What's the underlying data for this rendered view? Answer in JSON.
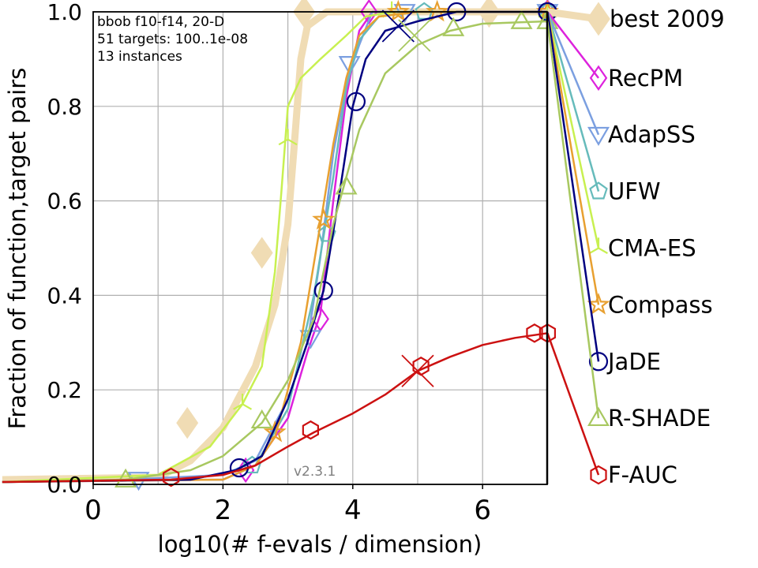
{
  "chart_data": {
    "type": "line",
    "title": "",
    "xlabel": "log10(# f-evals / dimension)",
    "ylabel": "Fraction of function,target pairs",
    "xlim": [
      -1.4,
      7.0
    ],
    "ylim": [
      0,
      1.0
    ],
    "xticks": [
      "0",
      "2",
      "4",
      "6"
    ],
    "xtick_values": [
      0,
      2,
      4,
      6
    ],
    "yticks": [
      "0.0",
      "0.2",
      "0.4",
      "0.6",
      "0.8",
      "1.0"
    ],
    "ytick_values": [
      0,
      0.2,
      0.4,
      0.6,
      0.8,
      1.0
    ],
    "grid": true,
    "legend_placement": "right",
    "annotations": [
      "bbob f10-f14, 20-D",
      "51 targets: 100..1e-08",
      "13 instances"
    ],
    "version": "v2.3.1",
    "series": [
      {
        "name": "best 2009",
        "color": "#f0dcb4",
        "marker": "diamond",
        "width": 9,
        "points": [
          [
            -1.4,
            0.01
          ],
          [
            1.0,
            0.015
          ],
          [
            1.5,
            0.05
          ],
          [
            2.0,
            0.12
          ],
          [
            2.5,
            0.25
          ],
          [
            2.8,
            0.38
          ],
          [
            3.0,
            0.55
          ],
          [
            3.1,
            0.72
          ],
          [
            3.2,
            0.9
          ],
          [
            3.3,
            0.97
          ],
          [
            3.6,
            1.0
          ],
          [
            7.0,
            1.0
          ]
        ],
        "markers": [
          [
            1.45,
            0.13
          ],
          [
            2.6,
            0.49
          ],
          [
            3.25,
            1.0
          ],
          [
            6.1,
            1.0
          ]
        ],
        "legend_end_y": 0.985
      },
      {
        "name": "RecPM",
        "color": "#dd22dd",
        "marker": "diamond-open",
        "width": 2.5,
        "points": [
          [
            -1.4,
            0.005
          ],
          [
            2.0,
            0.01
          ],
          [
            2.5,
            0.04
          ],
          [
            3.0,
            0.14
          ],
          [
            3.3,
            0.28
          ],
          [
            3.5,
            0.36
          ],
          [
            3.7,
            0.6
          ],
          [
            3.9,
            0.82
          ],
          [
            4.1,
            0.96
          ],
          [
            4.3,
            1.0
          ],
          [
            7.0,
            1.0
          ]
        ],
        "markers": [
          [
            2.35,
            0.03
          ],
          [
            3.5,
            0.35
          ],
          [
            4.25,
            1.0
          ],
          [
            7.0,
            1.0
          ]
        ],
        "legend_end_y": 0.86
      },
      {
        "name": "AdapSS",
        "color": "#7b9fe0",
        "marker": "triangle-down-open",
        "width": 2.5,
        "points": [
          [
            -1.4,
            0.005
          ],
          [
            0.5,
            0.01
          ],
          [
            2.0,
            0.02
          ],
          [
            2.5,
            0.05
          ],
          [
            3.0,
            0.18
          ],
          [
            3.3,
            0.3
          ],
          [
            3.5,
            0.48
          ],
          [
            3.7,
            0.7
          ],
          [
            3.9,
            0.85
          ],
          [
            4.1,
            0.93
          ],
          [
            4.3,
            1.0
          ],
          [
            7.0,
            1.0
          ]
        ],
        "markers": [
          [
            0.7,
            0.01
          ],
          [
            3.35,
            0.31
          ],
          [
            3.95,
            0.89
          ],
          [
            4.8,
            1.0
          ],
          [
            7.0,
            1.0
          ]
        ],
        "legend_end_y": 0.74
      },
      {
        "name": "UFW",
        "color": "#66bbbb",
        "marker": "pentagon-open",
        "width": 2.5,
        "points": [
          [
            -1.4,
            0.005
          ],
          [
            2.0,
            0.01
          ],
          [
            2.5,
            0.04
          ],
          [
            3.0,
            0.16
          ],
          [
            3.4,
            0.4
          ],
          [
            3.7,
            0.65
          ],
          [
            3.9,
            0.84
          ],
          [
            4.1,
            0.94
          ],
          [
            4.4,
            0.99
          ],
          [
            5.0,
            1.0
          ],
          [
            7.0,
            1.0
          ]
        ],
        "markers": [
          [
            2.45,
            0.04
          ],
          [
            3.6,
            0.53
          ],
          [
            5.1,
            1.0
          ],
          [
            7.0,
            1.0
          ]
        ],
        "legend_end_y": 0.62
      },
      {
        "name": "CMA-ES",
        "color": "#c8f050",
        "marker": "tri-open",
        "width": 2.5,
        "points": [
          [
            -1.4,
            0.005
          ],
          [
            1.0,
            0.02
          ],
          [
            1.8,
            0.08
          ],
          [
            2.3,
            0.17
          ],
          [
            2.6,
            0.25
          ],
          [
            2.8,
            0.45
          ],
          [
            2.9,
            0.62
          ],
          [
            3.0,
            0.8
          ],
          [
            3.2,
            0.86
          ],
          [
            3.5,
            0.9
          ],
          [
            3.9,
            0.95
          ],
          [
            4.2,
            0.99
          ],
          [
            4.6,
            1.0
          ],
          [
            7.0,
            1.0
          ]
        ],
        "markers": [
          [
            2.3,
            0.17
          ],
          [
            3.0,
            0.73
          ],
          [
            4.6,
            1.0
          ],
          [
            7.0,
            1.0
          ]
        ],
        "legend_end_y": 0.5
      },
      {
        "name": "Compass",
        "color": "#e8a030",
        "marker": "star-open",
        "width": 2.5,
        "points": [
          [
            -1.4,
            0.005
          ],
          [
            2.0,
            0.01
          ],
          [
            2.5,
            0.04
          ],
          [
            2.8,
            0.1
          ],
          [
            3.2,
            0.3
          ],
          [
            3.5,
            0.55
          ],
          [
            3.7,
            0.72
          ],
          [
            3.9,
            0.86
          ],
          [
            4.1,
            0.95
          ],
          [
            4.4,
            0.99
          ],
          [
            5.0,
            1.0
          ],
          [
            7.0,
            1.0
          ]
        ],
        "markers": [
          [
            2.8,
            0.11
          ],
          [
            3.55,
            0.56
          ],
          [
            4.7,
            1.0
          ],
          [
            5.3,
            1.0
          ],
          [
            7.0,
            1.0
          ]
        ],
        "legend_end_y": 0.38
      },
      {
        "name": "JaDE",
        "color": "#000080",
        "marker": "circle-open",
        "width": 2.5,
        "points": [
          [
            -1.4,
            0.005
          ],
          [
            1.5,
            0.01
          ],
          [
            2.2,
            0.03
          ],
          [
            2.6,
            0.06
          ],
          [
            3.0,
            0.18
          ],
          [
            3.3,
            0.3
          ],
          [
            3.55,
            0.41
          ],
          [
            3.8,
            0.62
          ],
          [
            4.0,
            0.8
          ],
          [
            4.2,
            0.9
          ],
          [
            4.5,
            0.96
          ],
          [
            5.0,
            0.98
          ],
          [
            5.6,
            1.0
          ],
          [
            7.0,
            1.0
          ]
        ],
        "markers": [
          [
            2.25,
            0.035
          ],
          [
            3.55,
            0.41
          ],
          [
            4.05,
            0.81
          ],
          [
            5.6,
            1.0
          ],
          [
            7.0,
            1.0
          ]
        ],
        "legend_end_y": 0.26
      },
      {
        "name": "R-SHADE",
        "color": "#a8c860",
        "marker": "triangle-open",
        "width": 2.5,
        "points": [
          [
            -1.4,
            0.005
          ],
          [
            0.5,
            0.01
          ],
          [
            1.5,
            0.03
          ],
          [
            2.0,
            0.06
          ],
          [
            2.6,
            0.13
          ],
          [
            3.0,
            0.22
          ],
          [
            3.4,
            0.35
          ],
          [
            3.7,
            0.55
          ],
          [
            3.9,
            0.65
          ],
          [
            4.1,
            0.75
          ],
          [
            4.5,
            0.87
          ],
          [
            5.0,
            0.93
          ],
          [
            5.5,
            0.96
          ],
          [
            6.0,
            0.975
          ],
          [
            7.0,
            0.98
          ]
        ],
        "markers": [
          [
            0.5,
            0.01
          ],
          [
            2.6,
            0.135
          ],
          [
            3.9,
            0.63
          ],
          [
            5.55,
            0.965
          ],
          [
            6.6,
            0.98
          ],
          [
            7.0,
            0.98
          ]
        ],
        "legend_end_y": 0.14
      },
      {
        "name": "F-AUC",
        "color": "#cc1111",
        "marker": "hexagon-open",
        "width": 2.5,
        "points": [
          [
            -1.4,
            0.005
          ],
          [
            1.2,
            0.01
          ],
          [
            2.0,
            0.02
          ],
          [
            2.5,
            0.04
          ],
          [
            3.0,
            0.08
          ],
          [
            3.4,
            0.11
          ],
          [
            4.0,
            0.15
          ],
          [
            4.5,
            0.19
          ],
          [
            5.0,
            0.24
          ],
          [
            5.5,
            0.27
          ],
          [
            6.0,
            0.295
          ],
          [
            6.5,
            0.31
          ],
          [
            7.0,
            0.32
          ]
        ],
        "markers": [
          [
            1.2,
            0.015
          ],
          [
            3.35,
            0.115
          ],
          [
            5.05,
            0.25
          ],
          [
            6.8,
            0.32
          ],
          [
            7.0,
            0.32
          ]
        ],
        "legend_end_y": 0.02
      }
    ],
    "cross_markers": [
      {
        "series": "JaDE",
        "x": 4.7,
        "y": 0.97
      },
      {
        "series": "R-SHADE",
        "x": 4.95,
        "y": 0.95
      },
      {
        "series": "F-AUC",
        "x": 5.0,
        "y": 0.24
      }
    ]
  }
}
